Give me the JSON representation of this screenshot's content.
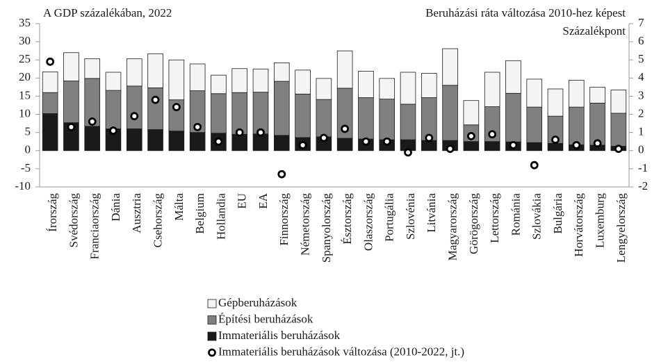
{
  "chart_data": {
    "type": "stacked_bar",
    "y_label": "A GDP százalékában, 2022",
    "y2_label": "Beruházási ráta változása 2010-hez képest",
    "y2_unit": "Százalékpont",
    "categories": [
      "Írország",
      "Svédország",
      "Franciaország",
      "Dánia",
      "Ausztria",
      "Csehország",
      "Málta",
      "Belgium",
      "Hollandia",
      "EU",
      "EA",
      "Finnország",
      "Németország",
      "Spanyolország",
      "Észtország",
      "Olaszország",
      "Portugália",
      "Szlovénia",
      "Litvánia",
      "Magyarország",
      "Görögország",
      "Lettország",
      "Románia",
      "Szlovákia",
      "Bulgária",
      "Horvátország",
      "Luxemburg",
      "Lengyelország"
    ],
    "series": [
      {
        "name": "Gépberuházások",
        "color": "#f4f4f4",
        "values": [
          5.7,
          7.8,
          5.4,
          5.0,
          7.5,
          9.4,
          11.0,
          7.4,
          5.1,
          6.6,
          6.4,
          5.1,
          6.6,
          5.8,
          10.3,
          7.3,
          5.7,
          8.8,
          6.7,
          10.1,
          6.7,
          9.5,
          9.0,
          7.7,
          7.5,
          7.4,
          4.4,
          6.4
        ]
      },
      {
        "name": "Építési beruházások",
        "color": "#808080",
        "values": [
          5.8,
          11.5,
          13.2,
          10.6,
          11.8,
          11.5,
          8.6,
          11.5,
          10.9,
          11.5,
          11.5,
          14.9,
          12.0,
          10.3,
          13.8,
          11.4,
          11.2,
          9.8,
          11.8,
          15.2,
          4.6,
          9.6,
          13.4,
          9.8,
          7.5,
          10.4,
          11.6,
          9.1
        ]
      },
      {
        "name": "Immateriális beruházások",
        "color": "#1a1a1a",
        "values": [
          10.2,
          7.7,
          6.7,
          6.0,
          6.0,
          5.8,
          5.4,
          5.0,
          4.8,
          4.5,
          4.6,
          4.2,
          3.6,
          3.8,
          3.4,
          3.2,
          3.0,
          3.0,
          2.8,
          2.8,
          2.5,
          2.5,
          2.4,
          2.2,
          2.0,
          1.6,
          1.5,
          1.2
        ]
      },
      {
        "name": "Immateriális beruházások változása (2010-2022, jt.)",
        "color": "#000000",
        "axis": "y2",
        "type": "scatter",
        "values": [
          4.9,
          1.3,
          1.6,
          1.1,
          1.9,
          2.8,
          2.4,
          1.3,
          0.5,
          1.0,
          1.0,
          -1.3,
          0.3,
          0.7,
          1.2,
          0.5,
          0.5,
          -0.1,
          0.7,
          0.1,
          0.8,
          0.9,
          0.3,
          -0.8,
          0.6,
          0.3,
          0.4,
          0.1
        ]
      }
    ],
    "ylim": [
      -10,
      35
    ],
    "yticks": [
      -10,
      -5,
      0,
      5,
      10,
      15,
      20,
      25,
      30,
      35
    ],
    "y2lim": [
      -2,
      7
    ],
    "y2ticks": [
      -2,
      -1,
      0,
      1,
      2,
      3,
      4,
      5,
      6,
      7
    ],
    "grid": false
  }
}
